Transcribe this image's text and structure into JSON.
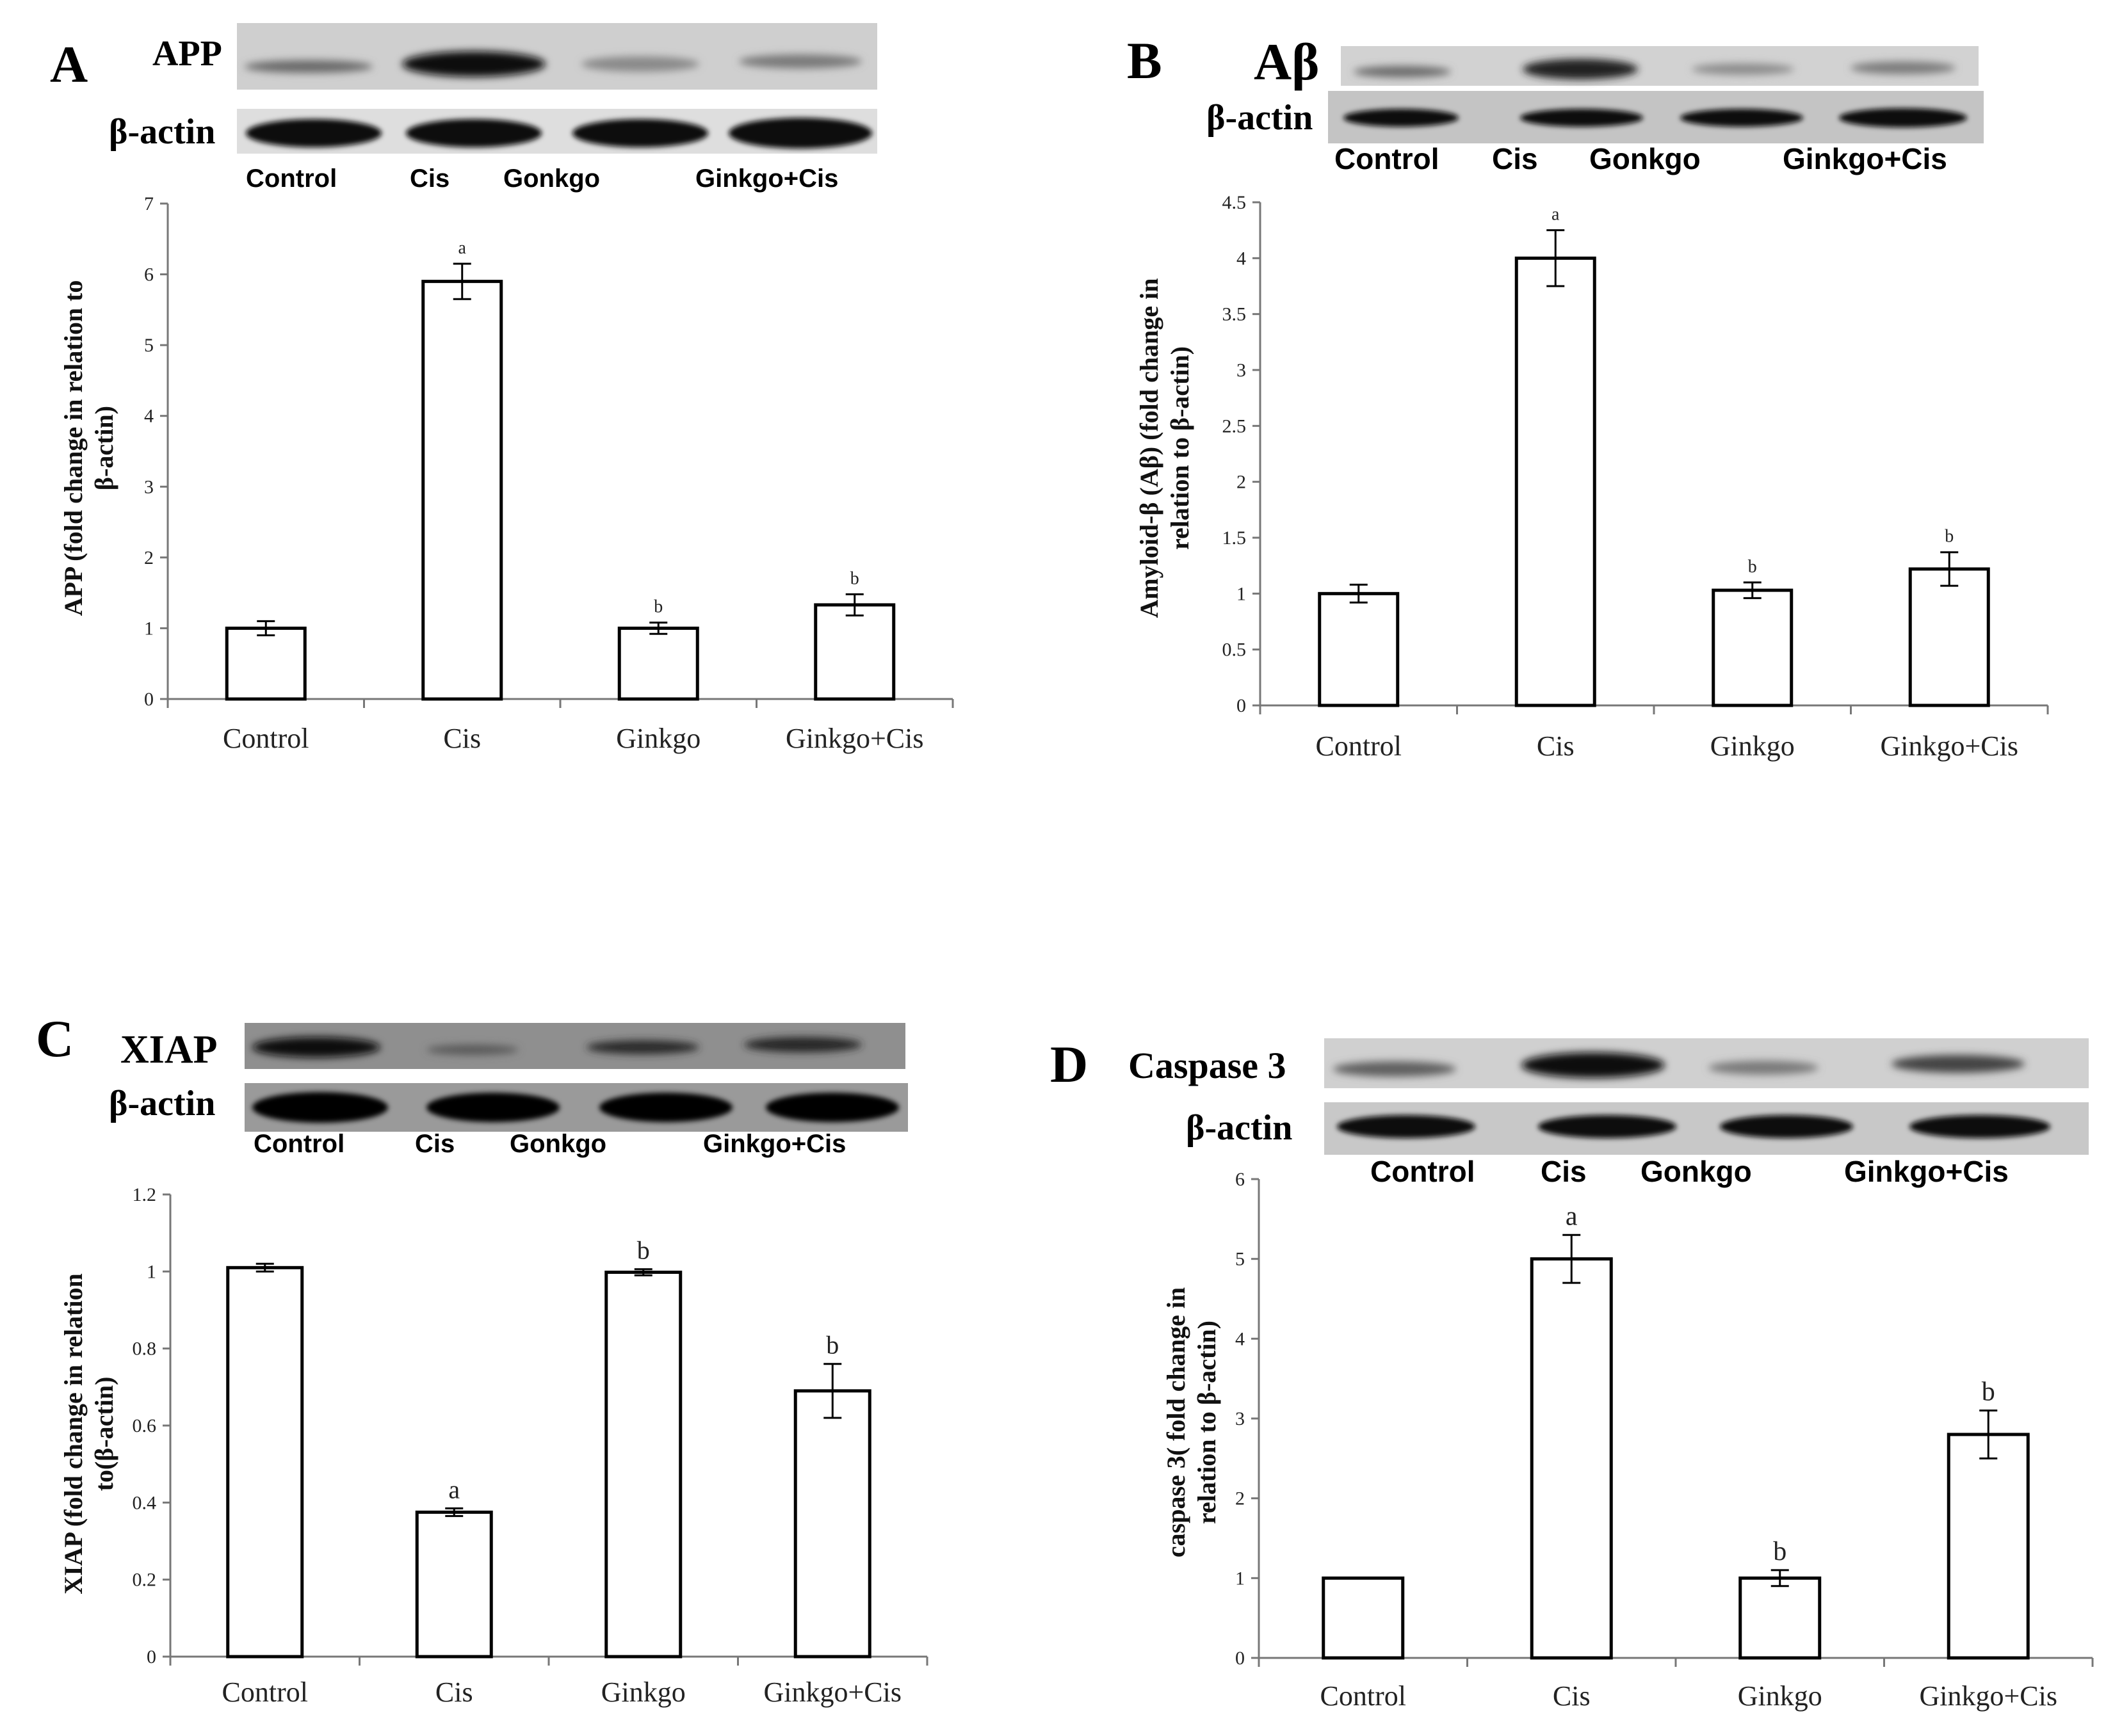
{
  "chart_data": [
    {
      "panel": "A",
      "type": "bar",
      "blot_labels": [
        "APP",
        "β-actin"
      ],
      "lane_labels": [
        "Control",
        "Cis",
        "Gonkgo",
        "Ginkgo+Cis"
      ],
      "categories": [
        "Control",
        "Cis",
        "Ginkgo",
        "Ginkgo+Cis"
      ],
      "values": [
        1.0,
        5.9,
        1.0,
        1.33
      ],
      "errors": [
        0.1,
        0.25,
        0.08,
        0.15
      ],
      "significance": [
        "",
        "a",
        "b",
        "b"
      ],
      "ylabel_lines": [
        "APP (fold change in relation to",
        "β-actin)"
      ],
      "ylim": [
        0,
        7
      ],
      "yticks": [
        0,
        1,
        2,
        3,
        4,
        5,
        6,
        7
      ],
      "ytick_labels": [
        "0",
        "1",
        "2",
        "3",
        "4",
        "5",
        "6",
        "7"
      ]
    },
    {
      "panel": "B",
      "type": "bar",
      "blot_labels": [
        "Aβ",
        "β-actin"
      ],
      "lane_labels": [
        "Control",
        "Cis",
        "Gonkgo",
        "Ginkgo+Cis"
      ],
      "categories": [
        "Control",
        "Cis",
        "Ginkgo",
        "Ginkgo+Cis"
      ],
      "values": [
        1.0,
        4.0,
        1.03,
        1.22
      ],
      "errors": [
        0.08,
        0.25,
        0.07,
        0.15
      ],
      "significance": [
        "",
        "a",
        "b",
        "b"
      ],
      "ylabel_lines": [
        "Amyloid-β (Aβ) (fold change in",
        "relation to β-actin)"
      ],
      "ylim": [
        0,
        4.5
      ],
      "yticks": [
        0,
        0.5,
        1,
        1.5,
        2,
        2.5,
        3,
        3.5,
        4,
        4.5
      ],
      "ytick_labels": [
        "0",
        "0.5",
        "1",
        "1.5",
        "2",
        "2.5",
        "3",
        "3.5",
        "4",
        "4.5"
      ]
    },
    {
      "panel": "C",
      "type": "bar",
      "blot_labels": [
        "XIAP",
        "β-actin"
      ],
      "lane_labels": [
        "Control",
        "Cis",
        "Gonkgo",
        "Ginkgo+Cis"
      ],
      "categories": [
        "Control",
        "Cis",
        "Ginkgo",
        "Ginkgo+Cis"
      ],
      "values": [
        1.01,
        0.375,
        0.998,
        0.69
      ],
      "errors": [
        0.01,
        0.01,
        0.008,
        0.07
      ],
      "significance": [
        "",
        "a",
        "b",
        "b"
      ],
      "ylabel_lines": [
        "XIAP (fold change in relation",
        "to(β-actin)"
      ],
      "ylim": [
        0,
        1.2
      ],
      "yticks": [
        0,
        0.2,
        0.4,
        0.6,
        0.8,
        1,
        1.2
      ],
      "ytick_labels": [
        "0",
        "0.2",
        "0.4",
        "0.6",
        "0.8",
        "1",
        "1.2"
      ]
    },
    {
      "panel": "D",
      "type": "bar",
      "blot_labels": [
        "Caspase 3",
        "β-actin"
      ],
      "lane_labels": [
        "Control",
        "Cis",
        "Gonkgo",
        "Ginkgo+Cis"
      ],
      "categories": [
        "Control",
        "Cis",
        "Ginkgo",
        "Ginkgo+Cis"
      ],
      "values": [
        1.0,
        5.0,
        1.0,
        2.8
      ],
      "errors": [
        0,
        0.3,
        0.1,
        0.3
      ],
      "significance": [
        "",
        "a",
        "b",
        "b"
      ],
      "ylabel_lines": [
        "caspase 3( fold change in",
        "relation to β-actin)"
      ],
      "ylim": [
        0,
        6
      ],
      "yticks": [
        0,
        1,
        2,
        3,
        4,
        5,
        6
      ],
      "ytick_labels": [
        "0",
        "1",
        "2",
        "3",
        "4",
        "5",
        "6"
      ]
    }
  ]
}
